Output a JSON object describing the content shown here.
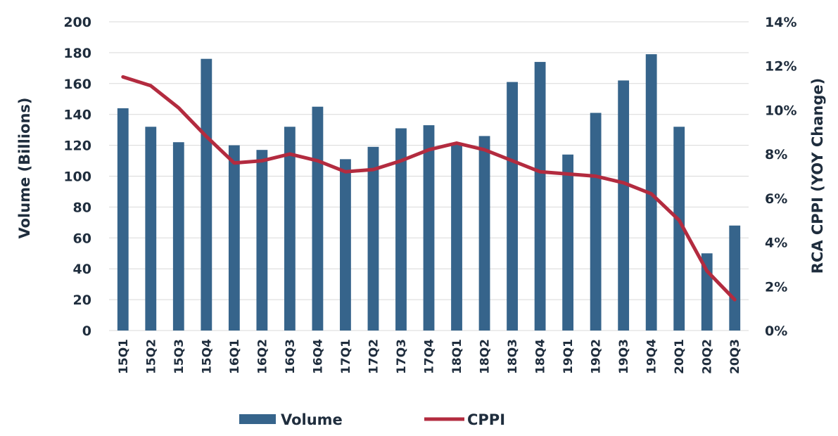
{
  "chart_data": {
    "type": "bar",
    "categories": [
      "15Q1",
      "15Q2",
      "15Q3",
      "15Q4",
      "16Q1",
      "16Q2",
      "16Q3",
      "16Q4",
      "17Q1",
      "17Q2",
      "17Q3",
      "17Q4",
      "18Q1",
      "18Q2",
      "18Q3",
      "18Q4",
      "19Q1",
      "19Q2",
      "19Q3",
      "19Q4",
      "20Q1",
      "20Q2",
      "20Q3"
    ],
    "series": [
      {
        "name": "Volume",
        "type": "bar",
        "axis": "left",
        "color": "#36648b",
        "values": [
          144,
          132,
          122,
          176,
          120,
          117,
          132,
          145,
          111,
          119,
          131,
          133,
          121,
          126,
          161,
          174,
          114,
          141,
          162,
          179,
          132,
          50,
          68
        ]
      },
      {
        "name": "CPPI",
        "type": "line",
        "axis": "right",
        "color": "#b32b3f",
        "values": [
          0.115,
          0.111,
          0.101,
          0.088,
          0.076,
          0.077,
          0.08,
          0.077,
          0.072,
          0.073,
          0.077,
          0.082,
          0.085,
          0.082,
          0.077,
          0.072,
          0.071,
          0.07,
          0.067,
          0.062,
          0.05,
          0.027,
          0.014
        ]
      }
    ],
    "ylabel": "Volume (Billions)",
    "y2label": "RCA CPPI (YOY Change)",
    "ylim": [
      0,
      200
    ],
    "y2lim": [
      0,
      0.14
    ],
    "yticks": [
      "0",
      "20",
      "40",
      "60",
      "80",
      "100",
      "120",
      "140",
      "160",
      "180",
      "200"
    ],
    "y2ticks": [
      "0%",
      "2%",
      "4%",
      "6%",
      "8%",
      "10%",
      "12%",
      "14%"
    ],
    "grid": true,
    "legend": "bottom-center"
  }
}
